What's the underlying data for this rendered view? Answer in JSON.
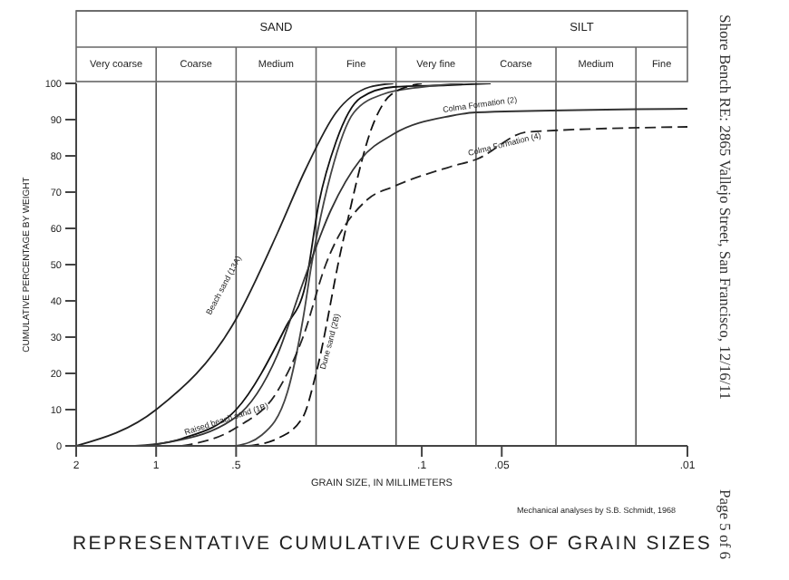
{
  "chart_data": {
    "type": "line",
    "title": "REPRESENTATIVE CUMULATIVE CURVES OF GRAIN SIZES",
    "xlabel": "GRAIN SIZE, IN MILLIMETERS",
    "ylabel": "CUMULATIVE PERCENTAGE BY WEIGHT",
    "log": "x",
    "xlim": [
      2,
      0.01
    ],
    "xticks": [
      2,
      1,
      {
        "value": 0.5,
        "label": ".5"
      },
      {
        "value": 0.1,
        "label": ".1"
      },
      {
        "value": 0.05,
        "label": ".05"
      },
      {
        "value": 0.01,
        "label": ".01"
      }
    ],
    "ylim": [
      0,
      100
    ],
    "yticks": [
      0,
      10,
      20,
      30,
      40,
      50,
      60,
      70,
      80,
      90,
      100
    ],
    "annotations": [
      "Mechanical analyses by S.B. Schmidt, 1968",
      "Shore Bench RE: 2865 Vallejo Street, San Francisco, 12/16/11",
      "Page 5 of 6",
      "SAND",
      "SILT",
      "Very coarse",
      "Coarse",
      "Medium",
      "Fine",
      "Very fine",
      "Coarse",
      "Medium",
      "Fine"
    ],
    "ref_lines": [
      {
        "axis": "x",
        "value": 1
      },
      {
        "axis": "x",
        "value": 0.5
      },
      {
        "axis": "x",
        "value": 0.25
      },
      {
        "axis": "x",
        "value": 0.125
      },
      {
        "axis": "x",
        "value": 0.0625
      },
      {
        "axis": "x",
        "value": 0.03125
      },
      {
        "axis": "x",
        "value": 0.015625
      }
    ],
    "series": [
      {
        "name": "Beach sand (13A)",
        "color": "#222222",
        "line_style": "solid",
        "x": [
          2,
          1,
          0.5,
          0.348,
          0.275,
          0.21,
          0.157,
          0.128
        ],
        "values": [
          0,
          10,
          35,
          59,
          76,
          92,
          99,
          100
        ]
      },
      {
        "name": "Raised beach sand (1B)",
        "color": "#111111",
        "line_style": "solid",
        "x": [
          1.1,
          0.8,
          0.5,
          0.324,
          0.275,
          0.244,
          0.21,
          0.17,
          0.128,
          0.08,
          0.055
        ],
        "values": [
          0,
          2,
          10,
          33,
          44,
          67,
          84,
          96,
          99,
          99.5,
          100
        ]
      },
      {
        "color": "#444444",
        "line_style": "solid",
        "x": [
          0.5,
          0.4,
          0.32,
          0.28,
          0.26,
          0.22,
          0.18,
          0.14,
          0.1,
          0.07
        ],
        "values": [
          0,
          3,
          15,
          35,
          50,
          75,
          92,
          97,
          99,
          100
        ]
      },
      {
        "name": "Dune sand (2B)",
        "color": "#111111",
        "line_style": "dashed",
        "x": [
          0.45,
          0.35,
          0.28,
          0.25,
          0.2,
          0.15,
          0.13,
          0.1
        ],
        "values": [
          0,
          2,
          8,
          20,
          55,
          90,
          97,
          100
        ]
      },
      {
        "name": "Colma Formation (2)",
        "color": "#333333",
        "line_style": "solid",
        "x": [
          1.2,
          0.9,
          0.5,
          0.35,
          0.28,
          0.22,
          0.17,
          0.128,
          0.078,
          0.0625,
          0.01
        ],
        "values": [
          0,
          1,
          8,
          25,
          45,
          65,
          79,
          86,
          91,
          92,
          93
        ]
      },
      {
        "name": "Colma Formation (4)",
        "color": "#222222",
        "line_style": "dashed",
        "x": [
          0.8,
          0.5,
          0.35,
          0.28,
          0.23,
          0.16,
          0.128,
          0.078,
          0.0625,
          0.04,
          0.01
        ],
        "values": [
          0,
          5,
          15,
          30,
          50,
          68,
          71.5,
          77,
          79,
          86.6,
          88
        ]
      }
    ]
  }
}
